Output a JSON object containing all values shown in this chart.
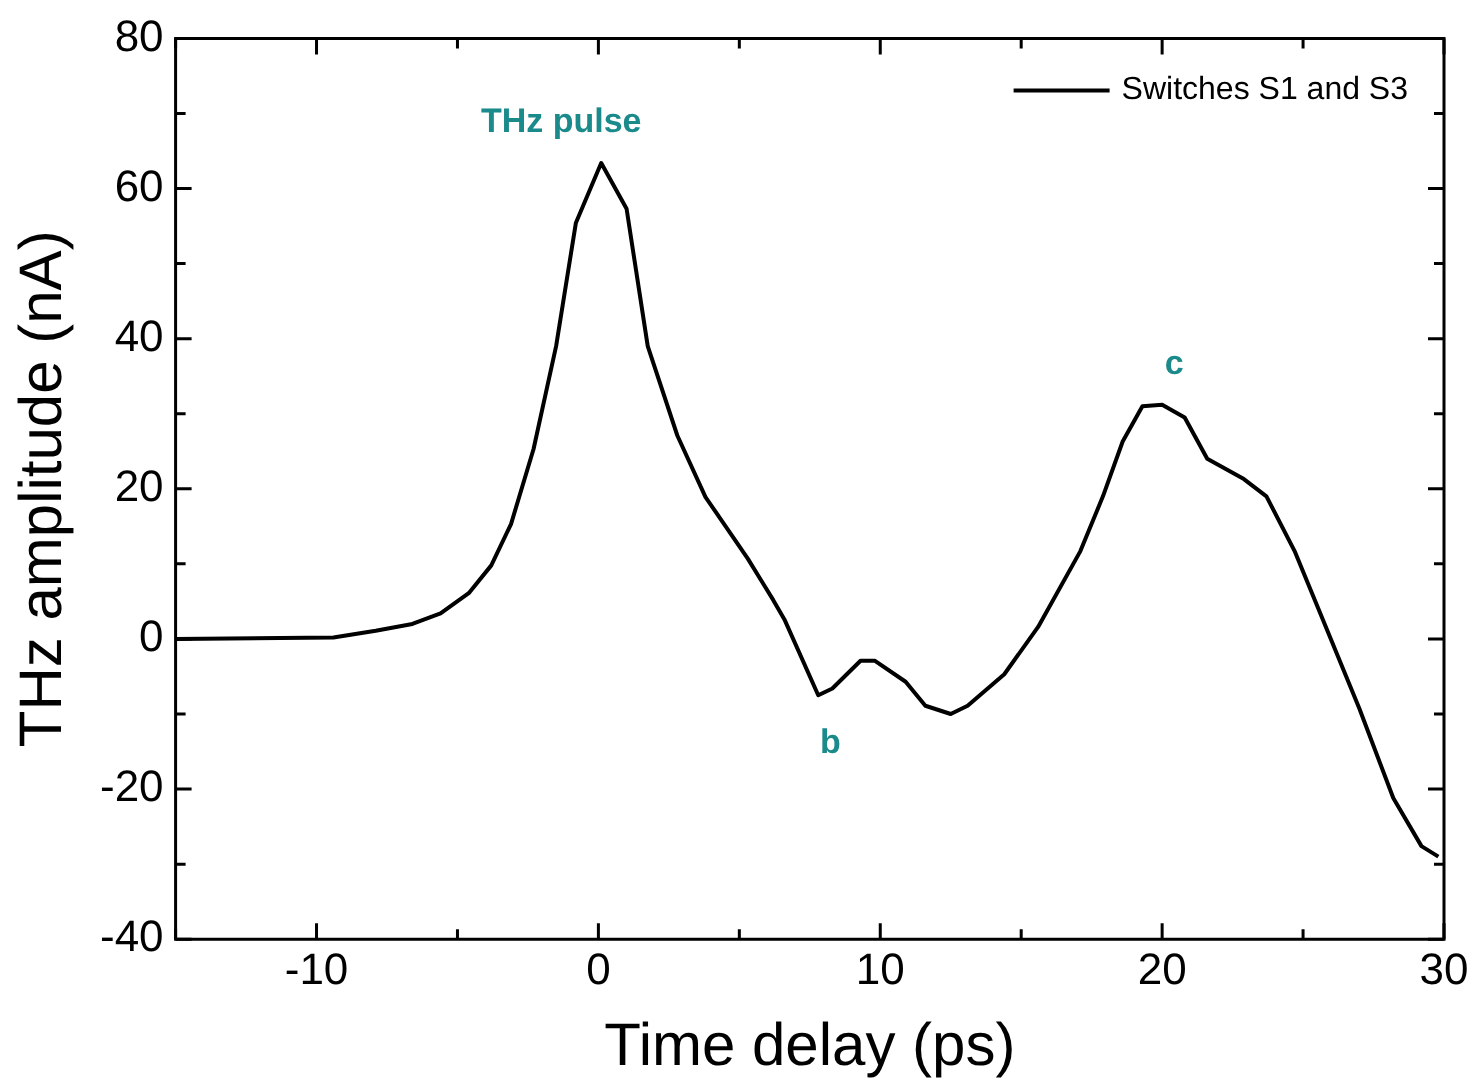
{
  "chart_data": {
    "type": "line",
    "xlabel": "Time delay (ps)",
    "ylabel": "THz amplitude (nA)",
    "x": [
      -15,
      -9.4,
      -7.9,
      -6.6,
      -5.6,
      -4.6,
      -3.8,
      -3.1,
      -2.3,
      -1.5,
      -0.8,
      0.1,
      1,
      1.75,
      2.8,
      3.8,
      5.3,
      6.2,
      6.6,
      7.8,
      8.3,
      9.3,
      9.8,
      10.9,
      11.6,
      12.5,
      13.1,
      14.4,
      15.6,
      17.1,
      17.9,
      18.6,
      19.3,
      20,
      20.8,
      21.6,
      22.9,
      23.7,
      24.7,
      25.7,
      27,
      28.2,
      29.2,
      29.8
    ],
    "series": [
      {
        "name": "Switches S1 and S3",
        "color": "#000000",
        "values": [
          0,
          0.2,
          1.1,
          2,
          3.4,
          6.1,
          9.8,
          15.3,
          25.3,
          39,
          55.4,
          63.4,
          57.3,
          39,
          27.1,
          18.9,
          10.7,
          5.2,
          2.6,
          -7.5,
          -6.6,
          -2.9,
          -2.9,
          -5.7,
          -8.9,
          -10,
          -8.9,
          -4.7,
          1.6,
          11.7,
          19,
          26.3,
          31,
          31.2,
          29.5,
          24,
          21.3,
          19,
          11.7,
          2.6,
          -9.3,
          -21.2,
          -27.6,
          -29
        ]
      }
    ],
    "xlim": [
      -15,
      30
    ],
    "xticks": [
      -10,
      0,
      10,
      20,
      30
    ],
    "ylim": [
      -40,
      80
    ],
    "yticks": [
      -40,
      -20,
      0,
      20,
      40,
      60,
      80
    ],
    "legend": "top right",
    "marker": "none",
    "line_style": "solid",
    "annotations": [
      {
        "text": "THz pulse",
        "x": 0.1,
        "y": 63.4
      },
      {
        "text": "b",
        "x": 7.8,
        "y": -7.5
      },
      {
        "text": "c",
        "x": 20,
        "y": 31.2
      }
    ]
  }
}
